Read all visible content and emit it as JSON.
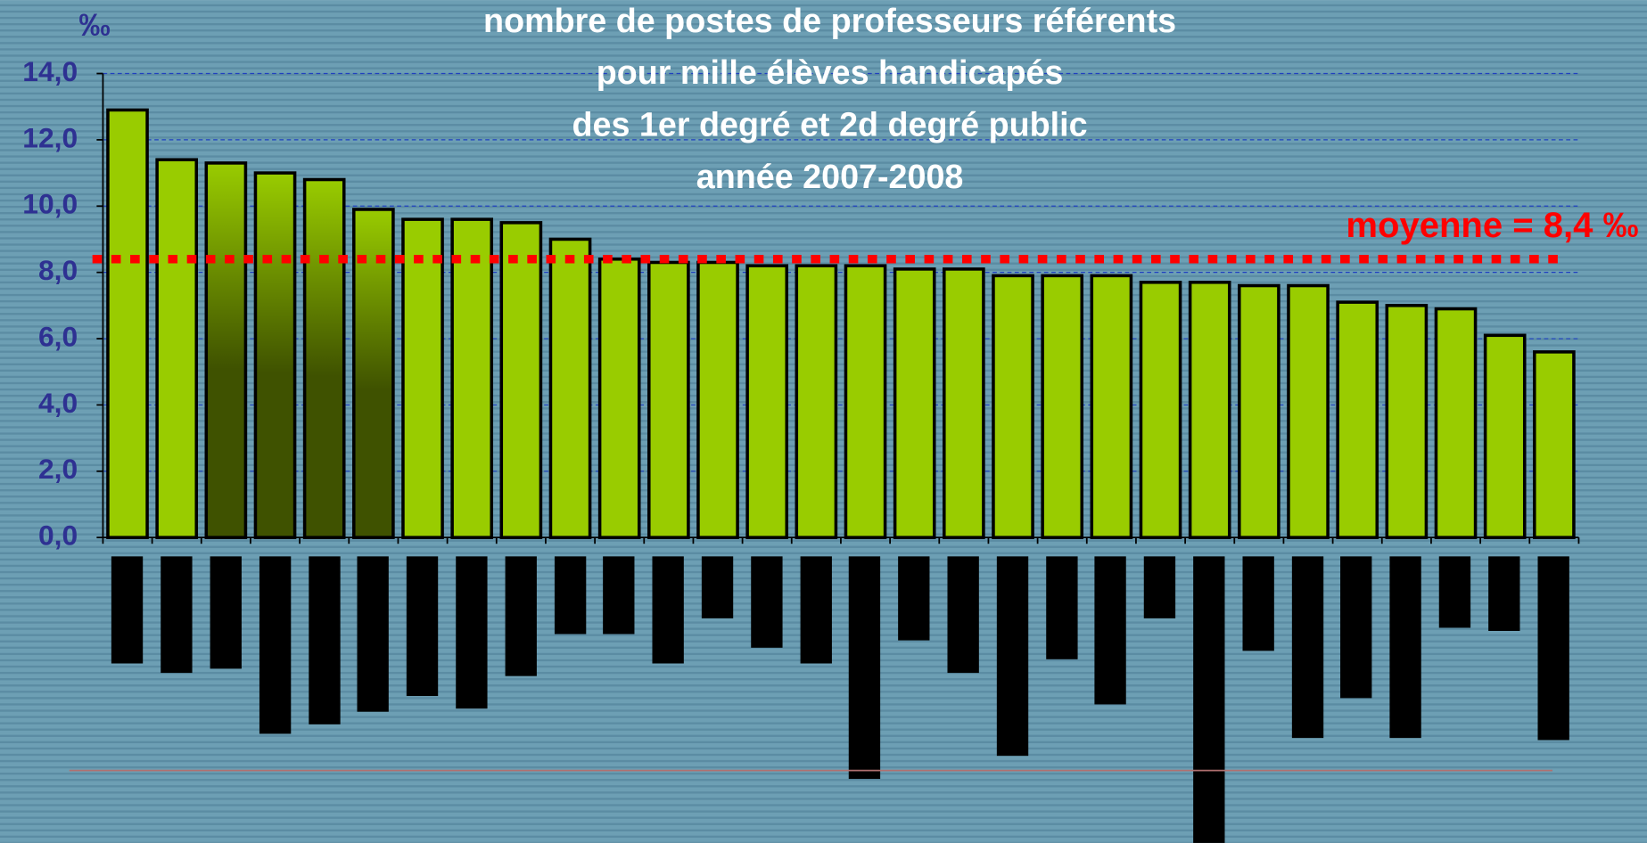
{
  "chart_data": {
    "type": "bar",
    "title": [
      "nombre de postes de professeurs référents",
      "pour mille élèves handicapés",
      "des 1er degré et 2d degré public",
      "année 2007-2008"
    ],
    "y_unit": "‰",
    "categories": [
      null,
      null,
      null,
      null,
      null,
      null,
      null,
      null,
      null,
      null,
      null,
      null,
      null,
      null,
      null,
      null,
      null,
      null,
      null,
      null,
      null,
      null,
      null,
      null,
      null,
      null,
      null,
      null,
      null,
      null
    ],
    "values": [
      12.9,
      11.4,
      11.3,
      11.0,
      10.8,
      9.9,
      9.6,
      9.6,
      9.5,
      9.0,
      8.4,
      8.3,
      8.3,
      8.2,
      8.2,
      8.2,
      8.1,
      8.1,
      7.9,
      7.9,
      7.9,
      7.7,
      7.7,
      7.6,
      7.6,
      7.1,
      7.0,
      6.9,
      6.1,
      5.6
    ],
    "color": "#99cc00",
    "colors": [
      "#99cc00",
      "#99cc00",
      "#3f5200",
      "#3f5200",
      "#3f5200",
      "#3f5200",
      "#99cc00",
      "#99cc00",
      "#99cc00",
      "#99cc00",
      "#99cc00",
      "#99cc00",
      "#99cc00",
      "#99cc00",
      "#99cc00",
      "#99cc00",
      "#99cc00",
      "#99cc00",
      "#99cc00",
      "#99cc00",
      "#99cc00",
      "#99cc00",
      "#99cc00",
      "#99cc00",
      "#99cc00",
      "#99cc00",
      "#99cc00",
      "#99cc00",
      "#99cc00",
      "#99cc00"
    ],
    "ylim": [
      0,
      14
    ],
    "yticks": [
      {
        "value": 0,
        "label": "0,0"
      },
      {
        "value": 2,
        "label": "2,0"
      },
      {
        "value": 4,
        "label": "4,0"
      },
      {
        "value": 6,
        "label": "6,0"
      },
      {
        "value": 8,
        "label": "8,0"
      },
      {
        "value": 10,
        "label": "10,0"
      },
      {
        "value": 12,
        "label": "12,0"
      },
      {
        "value": 14,
        "label": "14,0"
      }
    ],
    "grid": true,
    "reference_line": {
      "value": 8.4,
      "label": "moyenne = 8,4 ‰",
      "color": "#ff0000"
    }
  }
}
